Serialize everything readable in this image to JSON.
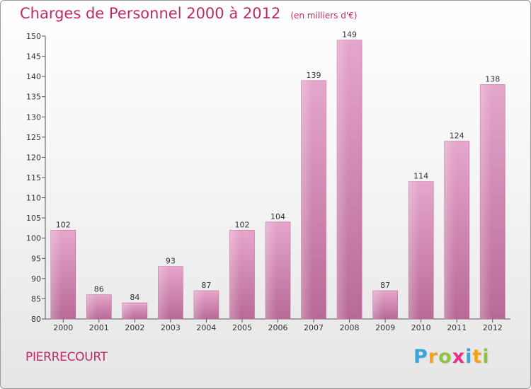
{
  "title": "Charges de Personnel 2000 à 2012",
  "title_unit": "(en milliers d'€)",
  "location": "PIERRECOURT",
  "brand": {
    "letters": [
      "P",
      "r",
      "o",
      "x",
      "i",
      "t",
      "i"
    ],
    "colors": [
      "#3aa5dd",
      "#f7a21b",
      "#8cc63f",
      "#e8308a",
      "#3aa5dd",
      "#f7a21b",
      "#8cc63f"
    ]
  },
  "colors": {
    "bar": "#d98bb8",
    "accent": "#bf2a66"
  },
  "chart_data": {
    "type": "bar",
    "title": "Charges de Personnel 2000 à 2012",
    "subtitle": "(en milliers d'€)",
    "xlabel": "",
    "ylabel": "",
    "ylim": [
      80,
      150
    ],
    "ytick_step": 5,
    "grid": false,
    "categories": [
      "2000",
      "2001",
      "2002",
      "2003",
      "2004",
      "2005",
      "2006",
      "2007",
      "2008",
      "2009",
      "2010",
      "2011",
      "2012"
    ],
    "values": [
      102,
      86,
      84,
      93,
      87,
      102,
      104,
      139,
      149,
      87,
      114,
      124,
      138
    ],
    "data_labels": [
      "102",
      "86",
      "84",
      "93",
      "87",
      "102",
      "104",
      "139",
      "149",
      "87",
      "114",
      "124",
      "138"
    ]
  }
}
